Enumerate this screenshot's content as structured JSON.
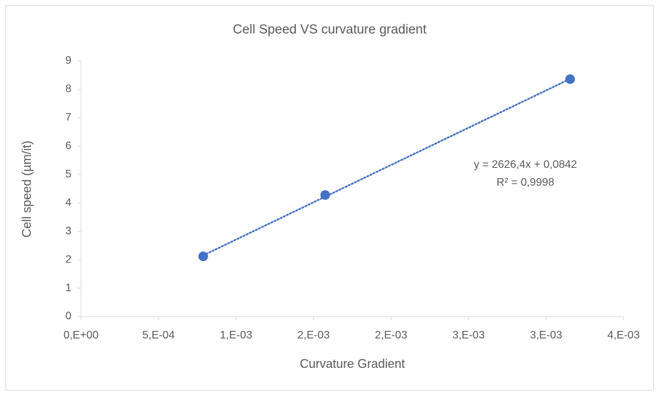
{
  "chart_data": {
    "type": "scatter",
    "title": "Cell Speed VS curvature gradient",
    "x_label": "Curvature Gradient",
    "y_label": "Cell speed (µm/it)",
    "series": [
      {
        "color": "#4472c4",
        "x": [
          0.000788,
          0.001575,
          0.003155
        ],
        "values": [
          2.12,
          4.28,
          8.36
        ]
      }
    ],
    "xlim": [
      0,
      0.0035
    ],
    "xticks": [
      {
        "value": 0,
        "label": "0,E+00"
      },
      {
        "value": 0.0005,
        "label": "5,E-04"
      },
      {
        "value": 0.001,
        "label": "1,E-03"
      },
      {
        "value": 0.0015,
        "label": "2,E-03"
      },
      {
        "value": 0.002,
        "label": "2,E-03"
      },
      {
        "value": 0.0025,
        "label": "3,E-03"
      },
      {
        "value": 0.003,
        "label": "3,E-03"
      },
      {
        "value": 0.0035,
        "label": "4,E-03"
      }
    ],
    "ylim": [
      0,
      9
    ],
    "yticks": [
      0,
      1,
      2,
      3,
      4,
      5,
      6,
      7,
      8,
      9
    ],
    "trendline": {
      "equation": "y = 2626,4x + 0,0842",
      "r_squared": "R² = 0,9998",
      "slope": 2626.4,
      "intercept": 0.0842
    }
  }
}
